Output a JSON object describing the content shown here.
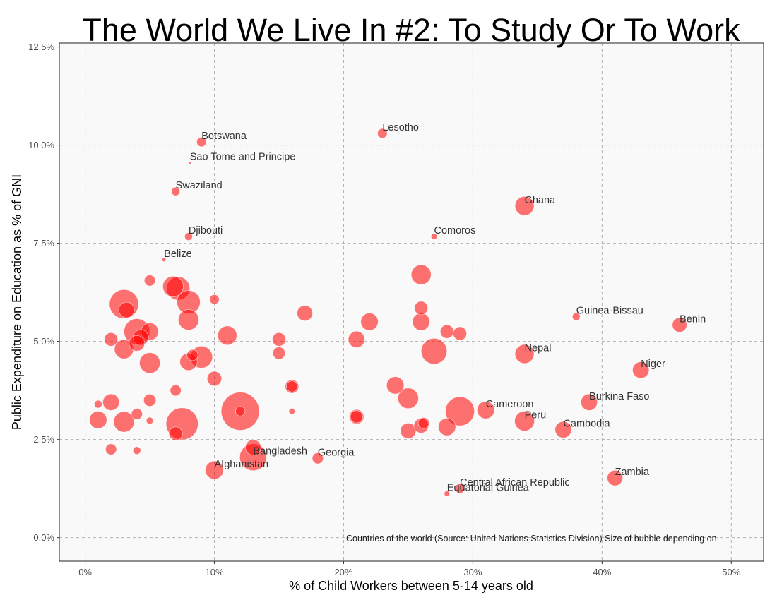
{
  "chart_data": {
    "type": "scatter",
    "title": "The World We Live In #2: To Study Or To Work",
    "xlabel": "% of Child Workers between 5-14 years old",
    "ylabel": "Public Expenditure on Education as % of GNI",
    "xlim": [
      -2,
      52.5
    ],
    "ylim": [
      -0.6,
      12.6
    ],
    "x_ticks": [
      0,
      10,
      20,
      30,
      40,
      50
    ],
    "x_tick_labels": [
      "0%",
      "10%",
      "20%",
      "30%",
      "40%",
      "50%"
    ],
    "y_ticks": [
      0,
      2.5,
      5,
      7.5,
      10,
      12.5
    ],
    "y_tick_labels": [
      "0.0%",
      "2.5%",
      "5.0%",
      "7.5%",
      "10.0%",
      "12.5%"
    ],
    "grid": true,
    "caption": "Countries of the world (Source: United Nations Statistics Division) Size of bubble depending on",
    "bubble_color": "#ff0000",
    "labeled_points": [
      {
        "label": "Botswana",
        "x": 9,
        "y": 10.08,
        "size": 1.5
      },
      {
        "label": "Sao Tome and Principe",
        "x": 8.1,
        "y": 9.55,
        "size": 0.1
      },
      {
        "label": "Swaziland",
        "x": 7,
        "y": 8.82,
        "size": 1.2
      },
      {
        "label": "Djibouti",
        "x": 8,
        "y": 7.67,
        "size": 1
      },
      {
        "label": "Belize",
        "x": 6.1,
        "y": 7.08,
        "size": 0.25
      },
      {
        "label": "Lesotho",
        "x": 23,
        "y": 10.3,
        "size": 1.5
      },
      {
        "label": "Ghana",
        "x": 34,
        "y": 8.45,
        "size": 6
      },
      {
        "label": "Comoros",
        "x": 27,
        "y": 7.67,
        "size": 0.6
      },
      {
        "label": "Guinea-Bissau",
        "x": 38,
        "y": 5.63,
        "size": 1
      },
      {
        "label": "Benin",
        "x": 46,
        "y": 5.42,
        "size": 3.5
      },
      {
        "label": "Nepal",
        "x": 34,
        "y": 4.68,
        "size": 6
      },
      {
        "label": "Niger",
        "x": 43,
        "y": 4.27,
        "size": 4.5
      },
      {
        "label": "Burkina Faso",
        "x": 39,
        "y": 3.45,
        "size": 4.5
      },
      {
        "label": "Cameroon",
        "x": 31,
        "y": 3.25,
        "size": 5
      },
      {
        "label": "Peru",
        "x": 34,
        "y": 2.97,
        "size": 6.5
      },
      {
        "label": "Cambodia",
        "x": 37,
        "y": 2.75,
        "size": 4.5
      },
      {
        "label": "Bangladesh",
        "x": 13,
        "y": 2.05,
        "size": 12
      },
      {
        "label": "Georgia",
        "x": 18,
        "y": 2.02,
        "size": 2
      },
      {
        "label": "Afghanistan",
        "x": 10,
        "y": 1.72,
        "size": 5.5
      },
      {
        "label": "Zambia",
        "x": 41,
        "y": 1.52,
        "size": 4
      },
      {
        "label": "Central African Republic",
        "x": 29,
        "y": 1.25,
        "size": 1.5
      },
      {
        "label": "Equatorial Guinea",
        "x": 28,
        "y": 1.12,
        "size": 0.5
      }
    ],
    "unlabeled_points": [
      {
        "x": 3,
        "y": 5.95,
        "size": 14
      },
      {
        "x": 3.2,
        "y": 5.8,
        "size": 4
      },
      {
        "x": 5,
        "y": 6.55,
        "size": 2
      },
      {
        "x": 6.8,
        "y": 6.4,
        "size": 7
      },
      {
        "x": 7.2,
        "y": 6.35,
        "size": 9
      },
      {
        "x": 8,
        "y": 6.0,
        "size": 9
      },
      {
        "x": 10,
        "y": 6.07,
        "size": 1.5
      },
      {
        "x": 8,
        "y": 5.55,
        "size": 7
      },
      {
        "x": 2,
        "y": 5.05,
        "size": 3
      },
      {
        "x": 3,
        "y": 4.8,
        "size": 6
      },
      {
        "x": 4,
        "y": 5.25,
        "size": 11
      },
      {
        "x": 4.3,
        "y": 5.1,
        "size": 4
      },
      {
        "x": 5,
        "y": 5.25,
        "size": 5
      },
      {
        "x": 4,
        "y": 4.95,
        "size": 4
      },
      {
        "x": 5,
        "y": 4.45,
        "size": 7
      },
      {
        "x": 8,
        "y": 4.48,
        "size": 5
      },
      {
        "x": 8.3,
        "y": 4.65,
        "size": 2
      },
      {
        "x": 9,
        "y": 4.6,
        "size": 8
      },
      {
        "x": 10,
        "y": 4.05,
        "size": 3.5
      },
      {
        "x": 11,
        "y": 5.15,
        "size": 6
      },
      {
        "x": 15,
        "y": 5.05,
        "size": 3
      },
      {
        "x": 15,
        "y": 4.7,
        "size": 2.5
      },
      {
        "x": 17,
        "y": 5.72,
        "size": 4
      },
      {
        "x": 22,
        "y": 5.5,
        "size": 5
      },
      {
        "x": 21,
        "y": 5.05,
        "size": 4.5
      },
      {
        "x": 26,
        "y": 6.7,
        "size": 6.5
      },
      {
        "x": 26,
        "y": 5.85,
        "size": 3
      },
      {
        "x": 26,
        "y": 5.5,
        "size": 5
      },
      {
        "x": 28,
        "y": 5.25,
        "size": 3
      },
      {
        "x": 29,
        "y": 5.2,
        "size": 3
      },
      {
        "x": 27,
        "y": 4.75,
        "size": 11
      },
      {
        "x": 16,
        "y": 3.85,
        "size": 3
      },
      {
        "x": 16,
        "y": 3.85,
        "size": 2
      },
      {
        "x": 16,
        "y": 3.22,
        "size": 0.6
      },
      {
        "x": 7,
        "y": 3.75,
        "size": 2
      },
      {
        "x": 5,
        "y": 3.5,
        "size": 2.5
      },
      {
        "x": 2,
        "y": 3.45,
        "size": 4.5
      },
      {
        "x": 1,
        "y": 3.4,
        "size": 1
      },
      {
        "x": 1,
        "y": 3.0,
        "size": 5
      },
      {
        "x": 3,
        "y": 2.95,
        "size": 7
      },
      {
        "x": 4,
        "y": 3.15,
        "size": 2
      },
      {
        "x": 5,
        "y": 2.98,
        "size": 0.8
      },
      {
        "x": 7.5,
        "y": 2.9,
        "size": 17
      },
      {
        "x": 7,
        "y": 2.65,
        "size": 3
      },
      {
        "x": 12,
        "y": 3.22,
        "size": 24
      },
      {
        "x": 12,
        "y": 3.22,
        "size": 1.5
      },
      {
        "x": 13,
        "y": 2.3,
        "size": 4
      },
      {
        "x": 2,
        "y": 2.25,
        "size": 2
      },
      {
        "x": 4,
        "y": 2.22,
        "size": 1
      },
      {
        "x": 21,
        "y": 3.08,
        "size": 3.5
      },
      {
        "x": 21,
        "y": 3.08,
        "size": 2.5
      },
      {
        "x": 24,
        "y": 3.88,
        "size": 5
      },
      {
        "x": 25,
        "y": 3.55,
        "size": 7
      },
      {
        "x": 25,
        "y": 2.72,
        "size": 4
      },
      {
        "x": 26,
        "y": 2.85,
        "size": 3.5
      },
      {
        "x": 26.2,
        "y": 2.92,
        "size": 2
      },
      {
        "x": 28,
        "y": 2.82,
        "size": 5
      },
      {
        "x": 29,
        "y": 3.22,
        "size": 14
      }
    ]
  }
}
